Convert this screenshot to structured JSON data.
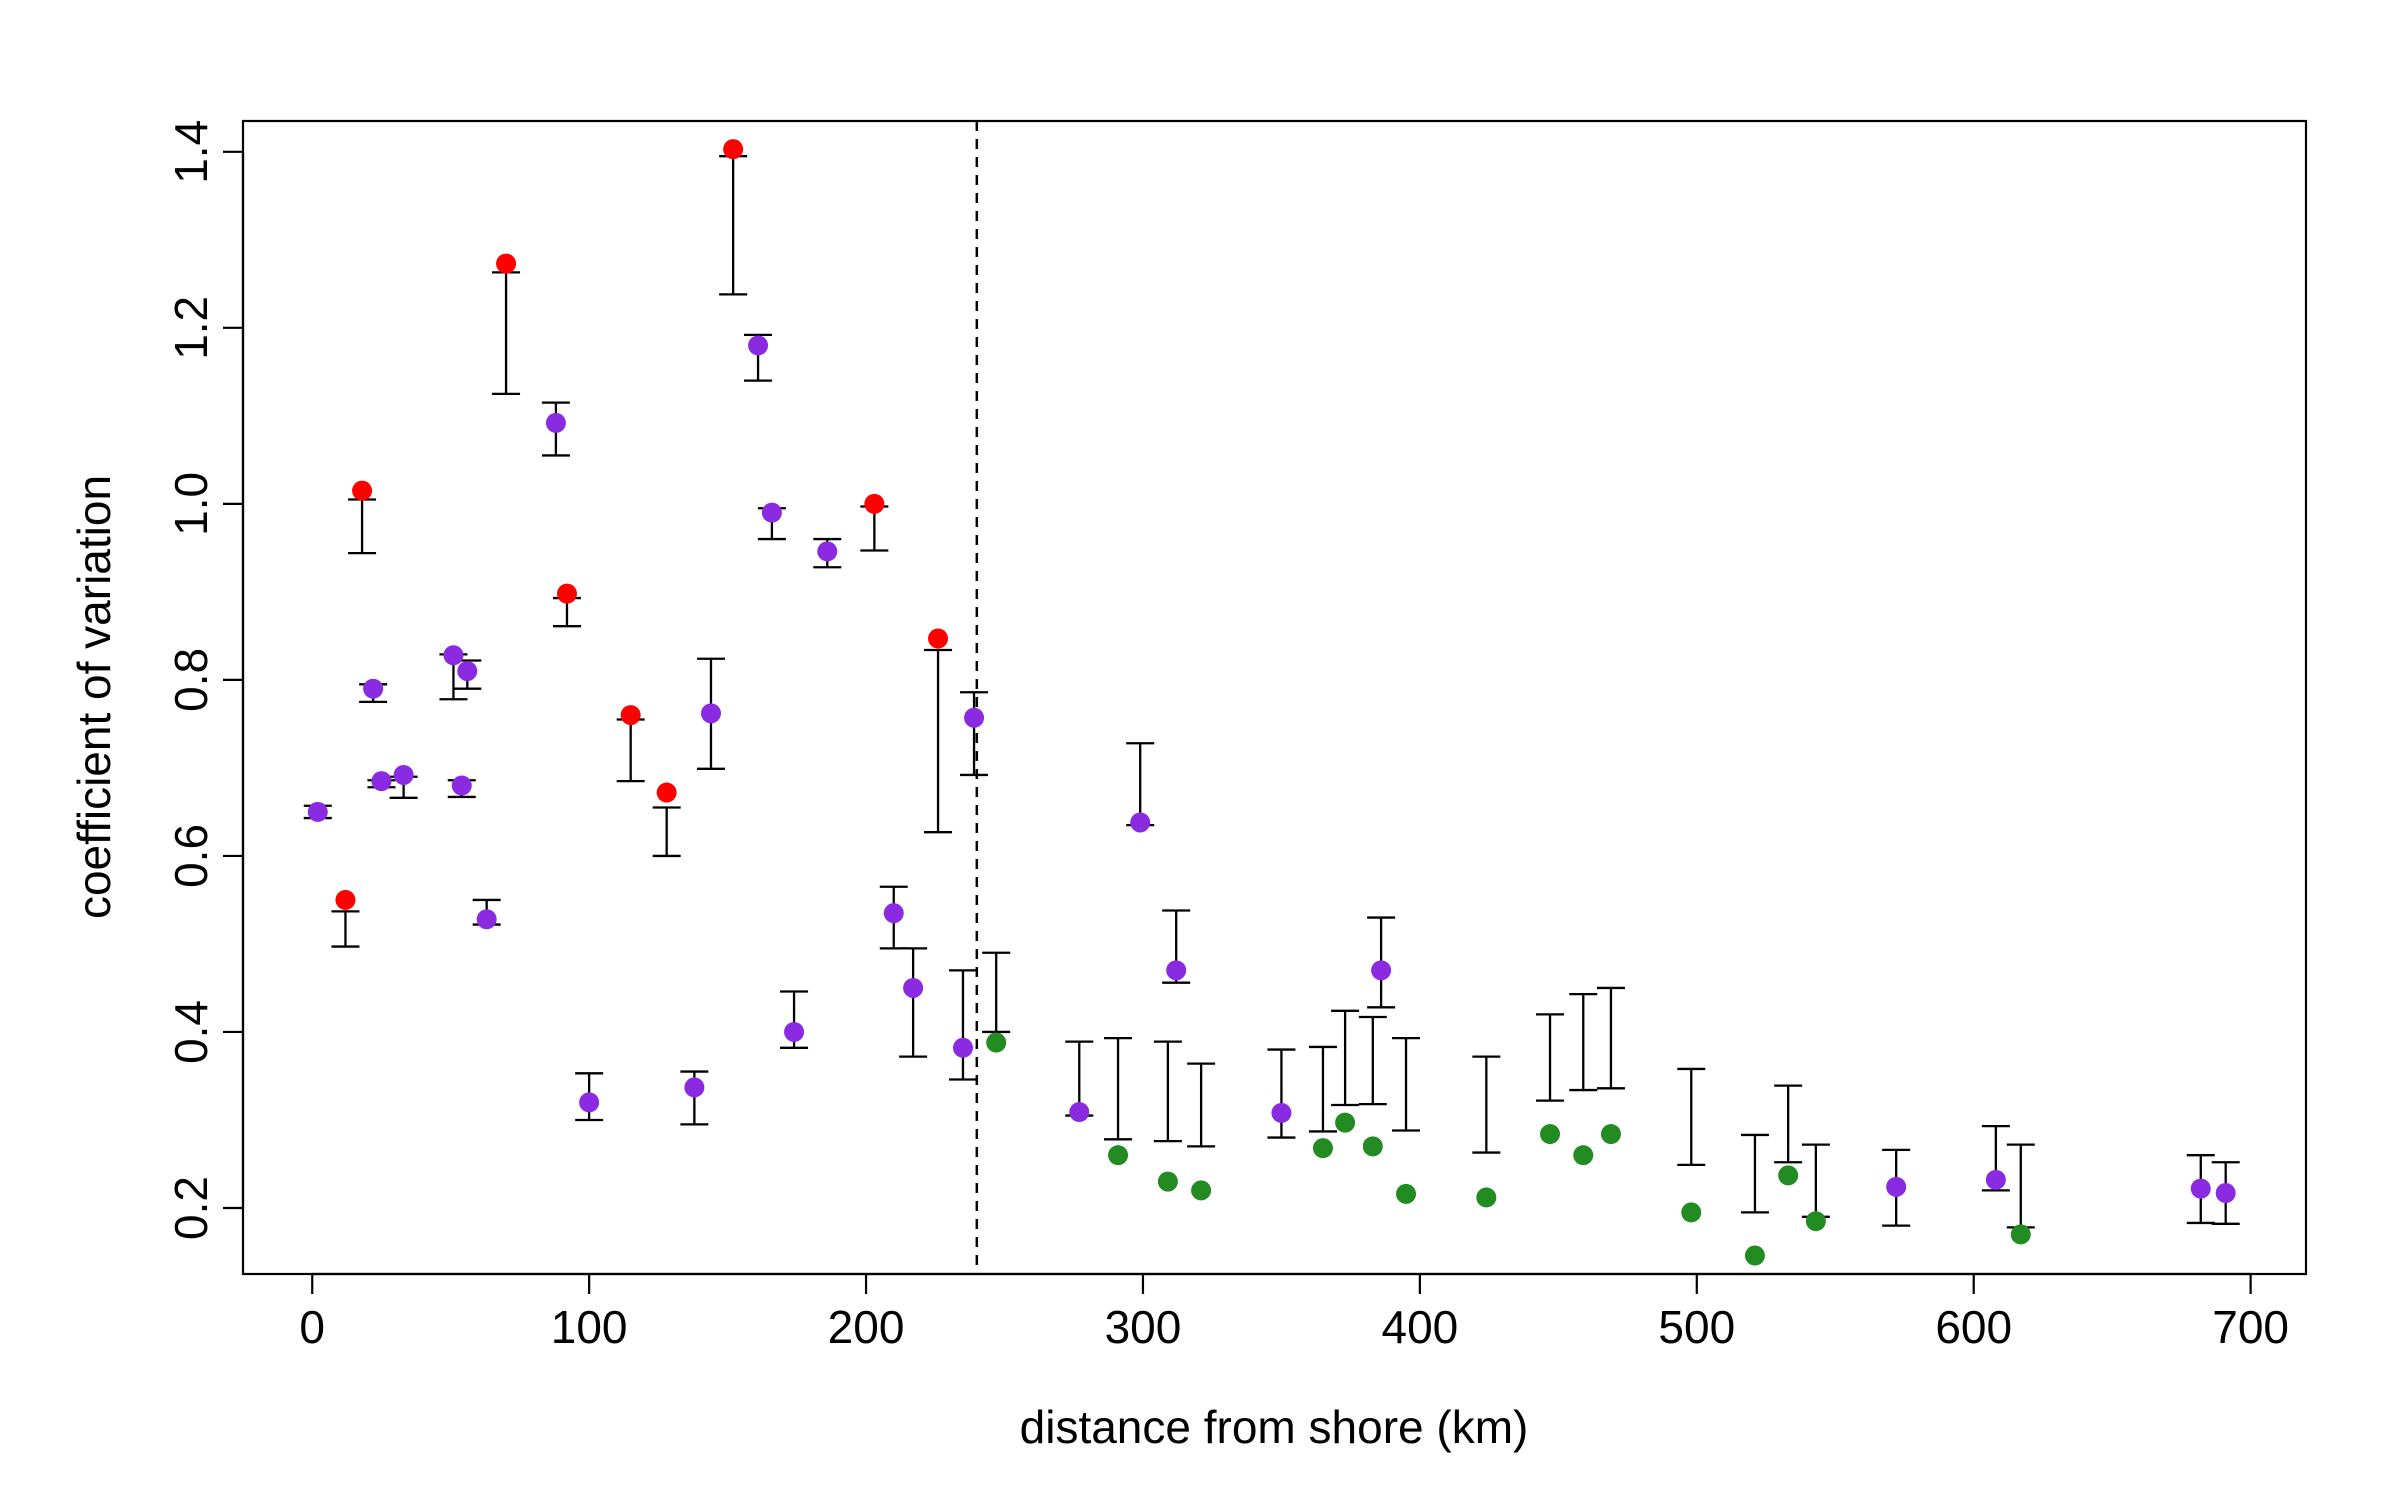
{
  "chart_data": {
    "type": "scatter",
    "title": "",
    "xlabel": "distance from shore (km)",
    "ylabel": "coefficient of variation",
    "xlim": [
      -25,
      720
    ],
    "ylim": [
      0.125,
      1.435
    ],
    "xticks": [
      0,
      100,
      200,
      300,
      400,
      500,
      600,
      700
    ],
    "yticks": [
      0.2,
      0.4,
      0.6,
      0.8,
      1.0,
      1.2,
      1.4
    ],
    "ytick_labels": [
      "0.2",
      "0.4",
      "0.6",
      "0.8",
      "1.0",
      "1.2",
      "1.4"
    ],
    "grid": false,
    "legend": "none",
    "vertical_reference_line": {
      "x": 240,
      "style": "dashed"
    },
    "colors": {
      "red": "#ff0000",
      "purple": "#8a2be2",
      "green": "#228b22",
      "error_bar": "#000000",
      "reference_line": "#000000"
    },
    "series": [
      {
        "color": "red",
        "points": [
          {
            "x": 12,
            "y": 0.55,
            "lo": 0.497,
            "hi": 0.537
          },
          {
            "x": 18,
            "y": 1.015,
            "lo": 0.944,
            "hi": 1.005
          },
          {
            "x": 70,
            "y": 1.273,
            "lo": 1.125,
            "hi": 1.263
          },
          {
            "x": 92,
            "y": 0.898,
            "lo": 0.861,
            "hi": 0.893
          },
          {
            "x": 115,
            "y": 0.76,
            "lo": 0.685,
            "hi": 0.755
          },
          {
            "x": 128,
            "y": 0.672,
            "lo": 0.6,
            "hi": 0.655
          },
          {
            "x": 152,
            "y": 1.403,
            "lo": 1.238,
            "hi": 1.395
          },
          {
            "x": 203,
            "y": 1.0,
            "lo": 0.947,
            "hi": 0.997
          },
          {
            "x": 226,
            "y": 0.847,
            "lo": 0.627,
            "hi": 0.834
          }
        ]
      },
      {
        "color": "purple",
        "points": [
          {
            "x": 2,
            "y": 0.65,
            "lo": 0.643,
            "hi": 0.657
          },
          {
            "x": 22,
            "y": 0.79,
            "lo": 0.775,
            "hi": 0.795
          },
          {
            "x": 25,
            "y": 0.685,
            "lo": 0.678,
            "hi": 0.686
          },
          {
            "x": 33,
            "y": 0.692,
            "lo": 0.666,
            "hi": 0.69
          },
          {
            "x": 51,
            "y": 0.828,
            "lo": 0.778,
            "hi": 0.829
          },
          {
            "x": 54,
            "y": 0.68,
            "lo": 0.667,
            "hi": 0.686
          },
          {
            "x": 56,
            "y": 0.81,
            "lo": 0.79,
            "hi": 0.822
          },
          {
            "x": 63,
            "y": 0.528,
            "lo": 0.522,
            "hi": 0.55
          },
          {
            "x": 88,
            "y": 1.092,
            "lo": 1.055,
            "hi": 1.115
          },
          {
            "x": 100,
            "y": 0.32,
            "lo": 0.3,
            "hi": 0.353
          },
          {
            "x": 138,
            "y": 0.337,
            "lo": 0.295,
            "hi": 0.355
          },
          {
            "x": 144,
            "y": 0.762,
            "lo": 0.699,
            "hi": 0.824
          },
          {
            "x": 161,
            "y": 1.18,
            "lo": 1.14,
            "hi": 1.192
          },
          {
            "x": 166,
            "y": 0.99,
            "lo": 0.96,
            "hi": 0.995
          },
          {
            "x": 174,
            "y": 0.4,
            "lo": 0.382,
            "hi": 0.446
          },
          {
            "x": 186,
            "y": 0.946,
            "lo": 0.928,
            "hi": 0.96
          },
          {
            "x": 210,
            "y": 0.535,
            "lo": 0.495,
            "hi": 0.565
          },
          {
            "x": 217,
            "y": 0.45,
            "lo": 0.372,
            "hi": 0.495
          },
          {
            "x": 235,
            "y": 0.382,
            "lo": 0.346,
            "hi": 0.47
          },
          {
            "x": 239,
            "y": 0.757,
            "lo": 0.692,
            "hi": 0.786
          },
          {
            "x": 277,
            "y": 0.309,
            "lo": 0.305,
            "hi": 0.389
          },
          {
            "x": 299,
            "y": 0.638,
            "lo": 0.635,
            "hi": 0.728
          },
          {
            "x": 312,
            "y": 0.47,
            "lo": 0.456,
            "hi": 0.538
          },
          {
            "x": 350,
            "y": 0.308,
            "lo": 0.28,
            "hi": 0.38
          },
          {
            "x": 386,
            "y": 0.47,
            "lo": 0.428,
            "hi": 0.53
          },
          {
            "x": 572,
            "y": 0.224,
            "lo": 0.18,
            "hi": 0.266
          },
          {
            "x": 608,
            "y": 0.232,
            "lo": 0.22,
            "hi": 0.293
          },
          {
            "x": 682,
            "y": 0.222,
            "lo": 0.183,
            "hi": 0.26
          },
          {
            "x": 691,
            "y": 0.217,
            "lo": 0.182,
            "hi": 0.252
          }
        ]
      },
      {
        "color": "green",
        "points": [
          {
            "x": 247,
            "y": 0.388,
            "lo": 0.4,
            "hi": 0.49
          },
          {
            "x": 291,
            "y": 0.26,
            "lo": 0.278,
            "hi": 0.393
          },
          {
            "x": 309,
            "y": 0.23,
            "lo": 0.276,
            "hi": 0.389
          },
          {
            "x": 321,
            "y": 0.22,
            "lo": 0.27,
            "hi": 0.364
          },
          {
            "x": 365,
            "y": 0.268,
            "lo": 0.287,
            "hi": 0.383
          },
          {
            "x": 373,
            "y": 0.297,
            "lo": 0.317,
            "hi": 0.424
          },
          {
            "x": 383,
            "y": 0.27,
            "lo": 0.318,
            "hi": 0.417
          },
          {
            "x": 395,
            "y": 0.216,
            "lo": 0.288,
            "hi": 0.393
          },
          {
            "x": 424,
            "y": 0.212,
            "lo": 0.263,
            "hi": 0.372
          },
          {
            "x": 447,
            "y": 0.284,
            "lo": 0.322,
            "hi": 0.42
          },
          {
            "x": 459,
            "y": 0.26,
            "lo": 0.334,
            "hi": 0.443
          },
          {
            "x": 469,
            "y": 0.284,
            "lo": 0.336,
            "hi": 0.45
          },
          {
            "x": 498,
            "y": 0.195,
            "lo": 0.249,
            "hi": 0.358
          },
          {
            "x": 521,
            "y": 0.146,
            "lo": 0.195,
            "hi": 0.283
          },
          {
            "x": 533,
            "y": 0.237,
            "lo": 0.252,
            "hi": 0.339
          },
          {
            "x": 543,
            "y": 0.185,
            "lo": 0.19,
            "hi": 0.272
          },
          {
            "x": 617,
            "y": 0.17,
            "lo": 0.178,
            "hi": 0.272
          }
        ]
      }
    ]
  }
}
